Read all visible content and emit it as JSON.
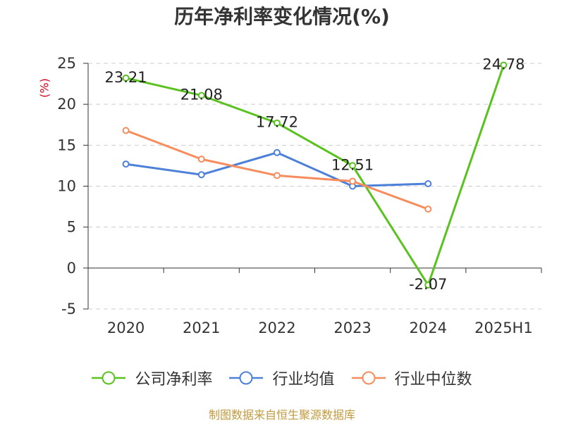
{
  "chart_data": {
    "type": "line",
    "title": "历年净利率变化情况(%)",
    "ylabel": "(%)",
    "categories": [
      "2020",
      "2021",
      "2022",
      "2023",
      "2024",
      "2025H1"
    ],
    "ylim": [
      -5,
      25
    ],
    "y_ticks": [
      25,
      20,
      15,
      10,
      5,
      0,
      -5
    ],
    "grid": true,
    "legend_position": "bottom",
    "series": [
      {
        "name": "公司净利率",
        "color": "#5ac21f",
        "values": [
          23.21,
          21.08,
          17.72,
          12.51,
          -2.07,
          24.78
        ],
        "data_labels": [
          "23.21",
          "21.08",
          "17.72",
          "12.51",
          "-2.07",
          "24.78"
        ]
      },
      {
        "name": "行业均值",
        "color": "#4d80d8",
        "values": [
          12.7,
          11.4,
          14.1,
          10.0,
          10.3,
          null
        ]
      },
      {
        "name": "行业中位数",
        "color": "#f68c5c",
        "values": [
          16.8,
          13.3,
          11.3,
          10.6,
          7.2,
          null
        ]
      }
    ]
  },
  "source_note": "制图数据来自恒生聚源数据库",
  "colors": {
    "title": "#333333",
    "axis": "#333333",
    "grid": "#cccccc",
    "ylabel": "#d0021b",
    "source_note": "#c09a3e"
  }
}
